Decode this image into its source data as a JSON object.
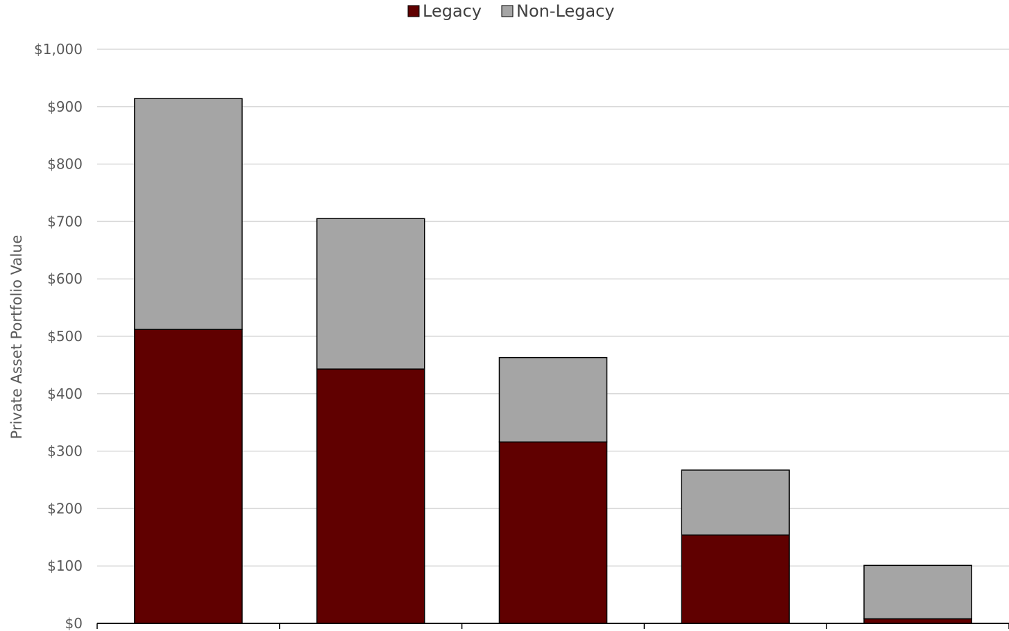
{
  "chart_data": {
    "type": "bar",
    "stacked": true,
    "categories": [
      "",
      "",
      "",
      "",
      ""
    ],
    "series": [
      {
        "name": "Legacy",
        "values": [
          512,
          443,
          316,
          154,
          8
        ],
        "color": "#600000"
      },
      {
        "name": "Non-Legacy",
        "values": [
          402,
          262,
          147,
          113,
          93
        ],
        "color": "#a5a5a5"
      }
    ],
    "title": "",
    "xlabel": "",
    "ylabel": "Private Asset Portfolio Value",
    "ylim": [
      0,
      1000
    ],
    "yticks": [
      "$0",
      "$100",
      "$200",
      "$300",
      "$400",
      "$500",
      "$600",
      "$700",
      "$800",
      "$900",
      "$1,000"
    ],
    "ytick_values": [
      0,
      100,
      200,
      300,
      400,
      500,
      600,
      700,
      800,
      900,
      1000
    ],
    "grid": true,
    "legend_position": "top-center",
    "colors": {
      "legacy": "#600000",
      "non_legacy": "#a5a5a5",
      "gridline": "#d9d9d9",
      "text": "#595959"
    }
  }
}
